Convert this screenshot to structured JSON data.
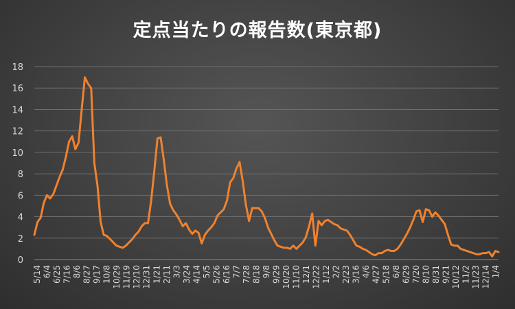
{
  "chart_data": {
    "type": "line",
    "title": "定点当たりの報告数(東京都)",
    "xlabel": "",
    "ylabel": "",
    "ylim": [
      0,
      18
    ],
    "yticks": [
      0,
      2,
      4,
      6,
      8,
      10,
      12,
      14,
      16,
      18
    ],
    "grid": true,
    "legend": "none",
    "colors": {
      "series": "#f0822e",
      "text": "#d9d9d9",
      "grid": "#6e6e6e"
    },
    "xtick_labels": [
      "5/14",
      "6/4",
      "6/25",
      "7/16",
      "8/6",
      "8/27",
      "9/17",
      "10/8",
      "10/29",
      "11/19",
      "12/10",
      "12/31",
      "1/21",
      "2/11",
      "3/3",
      "3/24",
      "4/14",
      "5/5",
      "5/26",
      "6/16",
      "7/7",
      "7/28",
      "8/18",
      "9/8",
      "9/29",
      "10/20",
      "11/10",
      "12/1",
      "12/22",
      "1/12",
      "2/2",
      "2/23",
      "3/16",
      "4/6",
      "4/27",
      "5/18",
      "6/8",
      "6/29",
      "7/20",
      "8/10",
      "8/31",
      "9/21",
      "10/12",
      "11/2",
      "11/23",
      "12/14",
      "1/4"
    ],
    "series": [
      {
        "values": [
          2.3,
          3.5,
          3.9,
          5.3,
          6.0,
          5.7,
          6.1,
          6.9,
          7.7,
          8.4,
          9.6,
          11.0,
          11.5,
          10.3,
          10.9,
          14.0,
          17.0,
          16.4,
          16.0,
          9.0,
          6.9,
          3.5,
          2.3,
          2.2,
          1.9,
          1.6,
          1.3,
          1.2,
          1.1,
          1.3,
          1.6,
          1.9,
          2.3,
          2.6,
          3.1,
          3.4,
          3.4,
          5.5,
          8.3,
          11.3,
          11.4,
          9.3,
          6.9,
          5.2,
          4.6,
          4.2,
          3.7,
          3.1,
          3.4,
          2.8,
          2.4,
          2.7,
          2.5,
          1.5,
          2.3,
          2.7,
          3.0,
          3.4,
          4.1,
          4.4,
          4.7,
          5.5,
          7.2,
          7.6,
          8.5,
          9.1,
          7.3,
          5.1,
          3.6,
          4.8,
          4.8,
          4.8,
          4.5,
          3.9,
          3.0,
          2.4,
          1.8,
          1.3,
          1.2,
          1.1,
          1.1,
          1.0,
          1.3,
          1.0,
          1.3,
          1.6,
          2.1,
          3.1,
          4.3,
          1.3,
          3.6,
          3.2,
          3.6,
          3.7,
          3.5,
          3.3,
          3.2,
          2.9,
          2.8,
          2.7,
          2.3,
          1.8,
          1.3,
          1.2,
          1.0,
          0.9,
          0.7,
          0.5,
          0.4,
          0.6,
          0.6,
          0.8,
          0.9,
          0.8,
          0.8,
          1.0,
          1.4,
          1.9,
          2.4,
          3.0,
          3.7,
          4.5,
          4.6,
          3.5,
          4.7,
          4.6,
          4.0,
          4.4,
          4.1,
          3.7,
          3.3,
          2.3,
          1.4,
          1.3,
          1.3,
          1.0,
          0.9,
          0.8,
          0.7,
          0.6,
          0.5,
          0.5,
          0.6,
          0.6,
          0.7,
          0.3,
          0.8,
          0.7
        ]
      }
    ]
  }
}
